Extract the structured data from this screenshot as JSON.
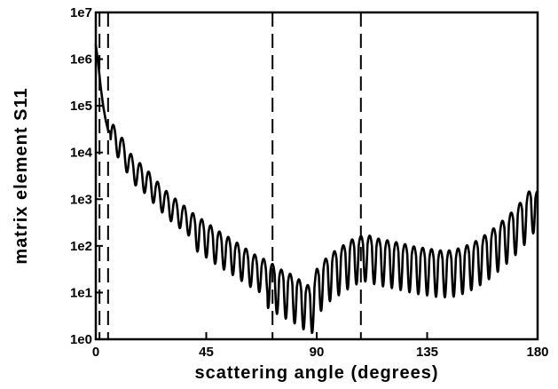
{
  "chart_data": {
    "type": "line",
    "title": "",
    "xlabel": "scattering angle (degrees)",
    "ylabel": "matrix element S11",
    "xlim": [
      0,
      180
    ],
    "ylim": [
      1,
      10000000
    ],
    "yscale": "log",
    "grid": false,
    "x_ticks": [
      0,
      45,
      90,
      135,
      180
    ],
    "x_tick_labels": [
      "0",
      "45",
      "90",
      "135",
      "180"
    ],
    "y_ticks": [
      1,
      10,
      100,
      1000,
      10000,
      100000,
      1000000,
      10000000
    ],
    "y_tick_labels": [
      "1e0",
      "1e1",
      "1e2",
      "1e3",
      "1e4",
      "1e5",
      "1e6",
      "1e7"
    ],
    "vertical_dashed_lines": [
      1.5,
      5,
      72,
      108
    ],
    "series": [
      {
        "color": "#000000",
        "x": [
          0,
          1,
          2,
          3,
          4,
          5,
          7,
          10,
          15,
          20,
          25,
          30,
          35,
          40,
          45,
          50,
          55,
          60,
          65,
          70,
          75,
          80,
          85,
          88,
          90,
          95,
          100,
          105,
          110,
          115,
          120,
          125,
          130,
          135,
          140,
          145,
          150,
          155,
          160,
          165,
          170,
          175,
          178,
          180
        ],
        "y": [
          2000000,
          800000,
          250000,
          100000,
          50000,
          30000,
          25000,
          15000,
          5000,
          3000,
          1500,
          800,
          500,
          300,
          200,
          130,
          90,
          60,
          40,
          30,
          20,
          15,
          10,
          8,
          20,
          40,
          60,
          90,
          110,
          90,
          80,
          70,
          60,
          55,
          50,
          50,
          60,
          80,
          120,
          200,
          350,
          700,
          1200,
          900
        ]
      }
    ]
  }
}
